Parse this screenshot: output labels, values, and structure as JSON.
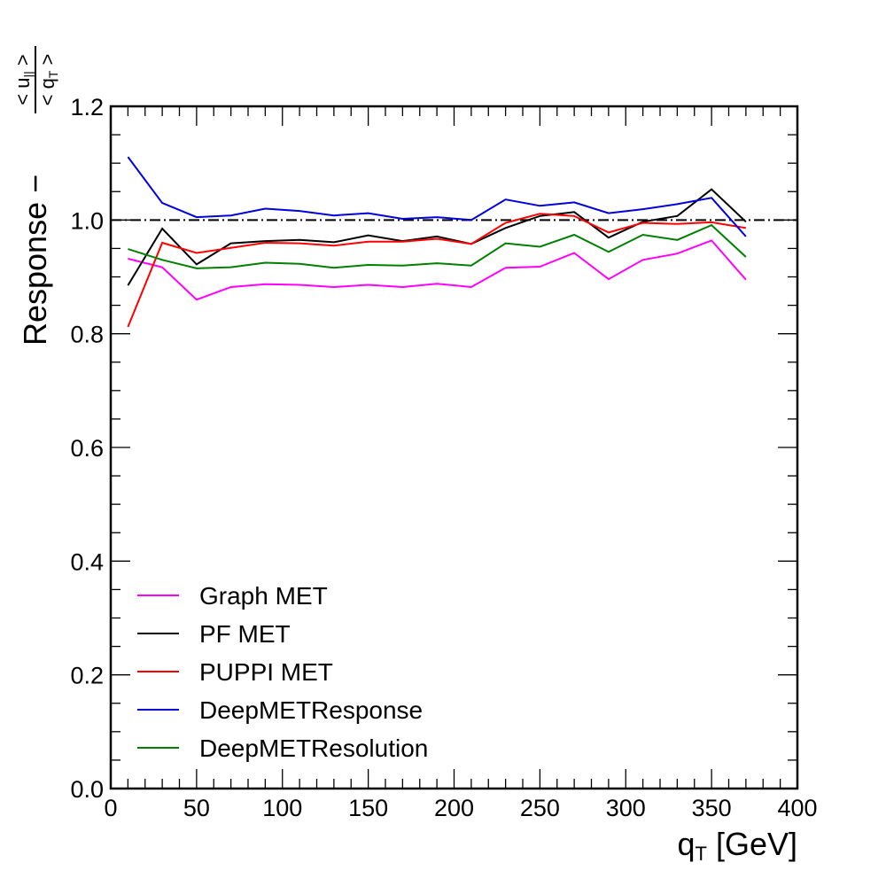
{
  "chart_data": {
    "type": "line",
    "xlabel": "q",
    "xlabel_sub": "T",
    "xlabel_unit": "[GeV]",
    "ylabel": "Response  −",
    "ylabel_frac": {
      "num": "< u",
      "num_sub": "||",
      "num_end": " >",
      "den": "< q",
      "den_sub": "T",
      "den_end": " >"
    },
    "xlim": [
      0,
      400
    ],
    "ylim": [
      0.0,
      1.2
    ],
    "xticks": [
      0,
      50,
      100,
      150,
      200,
      250,
      300,
      350,
      400
    ],
    "xtick_labels": [
      "0",
      "50",
      "100",
      "150",
      "200",
      "250",
      "300",
      "350",
      "400"
    ],
    "yticks": [
      0.0,
      0.2,
      0.4,
      0.6,
      0.8,
      1.0,
      1.2
    ],
    "ytick_labels": [
      "0.0",
      "0.2",
      "0.4",
      "0.6",
      "0.8",
      "1.0",
      "1.2"
    ],
    "grid": false,
    "legend_position": "bottom-left",
    "reference_line": {
      "y": 1.0,
      "style": "dash-dot",
      "color": "#000000"
    },
    "x": [
      10,
      30,
      50,
      70,
      90,
      110,
      130,
      150,
      170,
      190,
      210,
      230,
      250,
      270,
      290,
      310,
      330,
      350,
      370
    ],
    "series": [
      {
        "name": "Graph MET",
        "color": "#ff00ff",
        "values": [
          0.932,
          0.917,
          0.86,
          0.882,
          0.887,
          0.886,
          0.882,
          0.886,
          0.882,
          0.888,
          0.882,
          0.916,
          0.918,
          0.942,
          0.896,
          0.93,
          0.941,
          0.964,
          0.895
        ]
      },
      {
        "name": "PF MET",
        "color": "#000000",
        "values": [
          0.885,
          0.985,
          0.922,
          0.959,
          0.963,
          0.965,
          0.961,
          0.973,
          0.963,
          0.971,
          0.958,
          0.986,
          1.007,
          1.014,
          0.969,
          0.997,
          1.007,
          1.054,
          0.997
        ]
      },
      {
        "name": "PUPPI MET",
        "color": "#ff0000",
        "values": [
          0.812,
          0.96,
          0.942,
          0.951,
          0.96,
          0.959,
          0.955,
          0.962,
          0.962,
          0.967,
          0.958,
          0.995,
          1.011,
          1.007,
          0.978,
          0.995,
          0.993,
          0.996,
          0.986
        ]
      },
      {
        "name": "DeepMETResponse",
        "color": "#0000dd",
        "values": [
          1.111,
          1.03,
          1.005,
          1.008,
          1.02,
          1.016,
          1.008,
          1.012,
          1.002,
          1.005,
          1.0,
          1.036,
          1.025,
          1.031,
          1.012,
          1.019,
          1.028,
          1.039,
          0.971
        ]
      },
      {
        "name": "DeepMETResolution",
        "color": "#008000",
        "values": [
          0.949,
          0.93,
          0.915,
          0.917,
          0.925,
          0.923,
          0.916,
          0.921,
          0.92,
          0.924,
          0.92,
          0.959,
          0.953,
          0.974,
          0.944,
          0.974,
          0.965,
          0.991,
          0.935
        ]
      }
    ]
  }
}
